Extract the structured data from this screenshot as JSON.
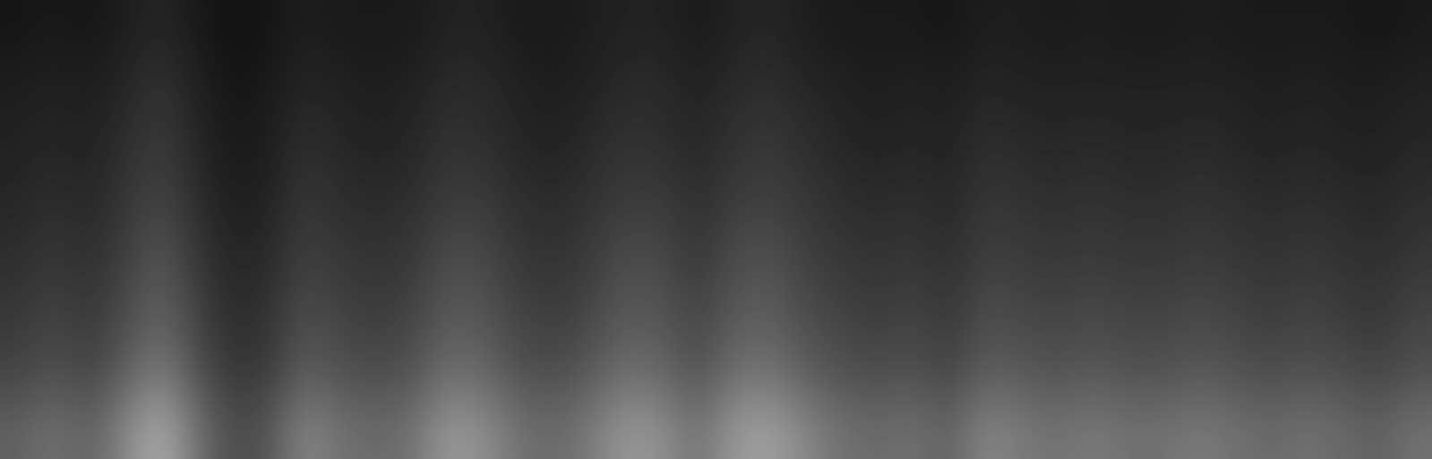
{
  "chart_data": {
    "type": "heatmap",
    "tick_labels": false,
    "color": "gray",
    "color_range": [
      0,
      0.6
    ],
    "cells": [
      [
        0.05,
        0.06,
        0.05,
        0.07,
        0.09,
        0.06,
        0.04,
        0.05,
        0.07,
        0.06,
        0.06,
        0.06,
        0.08,
        0.08,
        0.06,
        0.06,
        0.07,
        0.08,
        0.08,
        0.06,
        0.08,
        0.09,
        0.07,
        0.06,
        0.06,
        0.06,
        0.05,
        0.07,
        0.07,
        0.06,
        0.07,
        0.06,
        0.06,
        0.07,
        0.06,
        0.06,
        0.06,
        0.06,
        0.05,
        0.06
      ],
      [
        0.07,
        0.08,
        0.07,
        0.09,
        0.12,
        0.08,
        0.05,
        0.06,
        0.09,
        0.08,
        0.07,
        0.08,
        0.1,
        0.1,
        0.08,
        0.07,
        0.08,
        0.1,
        0.1,
        0.08,
        0.1,
        0.11,
        0.09,
        0.08,
        0.07,
        0.08,
        0.07,
        0.09,
        0.08,
        0.08,
        0.08,
        0.08,
        0.08,
        0.08,
        0.08,
        0.07,
        0.08,
        0.07,
        0.07,
        0.08
      ],
      [
        0.08,
        0.09,
        0.08,
        0.11,
        0.14,
        0.09,
        0.06,
        0.07,
        0.11,
        0.09,
        0.08,
        0.09,
        0.12,
        0.11,
        0.09,
        0.08,
        0.1,
        0.12,
        0.11,
        0.09,
        0.12,
        0.13,
        0.11,
        0.09,
        0.08,
        0.09,
        0.08,
        0.11,
        0.1,
        0.09,
        0.1,
        0.09,
        0.09,
        0.1,
        0.09,
        0.08,
        0.09,
        0.08,
        0.08,
        0.09
      ],
      [
        0.09,
        0.11,
        0.09,
        0.13,
        0.16,
        0.11,
        0.07,
        0.08,
        0.13,
        0.11,
        0.1,
        0.11,
        0.14,
        0.14,
        0.11,
        0.1,
        0.12,
        0.14,
        0.14,
        0.11,
        0.14,
        0.15,
        0.13,
        0.11,
        0.1,
        0.11,
        0.09,
        0.13,
        0.12,
        0.11,
        0.12,
        0.11,
        0.11,
        0.12,
        0.11,
        0.1,
        0.11,
        0.1,
        0.09,
        0.11
      ],
      [
        0.11,
        0.13,
        0.11,
        0.15,
        0.2,
        0.13,
        0.09,
        0.1,
        0.15,
        0.13,
        0.12,
        0.13,
        0.18,
        0.17,
        0.13,
        0.12,
        0.14,
        0.18,
        0.17,
        0.13,
        0.18,
        0.19,
        0.15,
        0.13,
        0.12,
        0.13,
        0.11,
        0.15,
        0.14,
        0.13,
        0.14,
        0.13,
        0.13,
        0.14,
        0.13,
        0.12,
        0.13,
        0.12,
        0.11,
        0.13
      ],
      [
        0.13,
        0.16,
        0.13,
        0.18,
        0.23,
        0.16,
        0.1,
        0.12,
        0.18,
        0.16,
        0.14,
        0.16,
        0.21,
        0.2,
        0.16,
        0.14,
        0.17,
        0.21,
        0.2,
        0.16,
        0.21,
        0.22,
        0.18,
        0.16,
        0.14,
        0.16,
        0.13,
        0.18,
        0.17,
        0.16,
        0.17,
        0.16,
        0.16,
        0.17,
        0.16,
        0.14,
        0.16,
        0.14,
        0.13,
        0.16
      ],
      [
        0.16,
        0.19,
        0.16,
        0.22,
        0.29,
        0.19,
        0.13,
        0.14,
        0.22,
        0.19,
        0.18,
        0.19,
        0.26,
        0.24,
        0.19,
        0.18,
        0.21,
        0.26,
        0.24,
        0.19,
        0.26,
        0.27,
        0.22,
        0.19,
        0.18,
        0.19,
        0.16,
        0.22,
        0.21,
        0.19,
        0.21,
        0.19,
        0.19,
        0.21,
        0.19,
        0.18,
        0.19,
        0.18,
        0.16,
        0.19
      ],
      [
        0.23,
        0.27,
        0.23,
        0.32,
        0.41,
        0.27,
        0.18,
        0.2,
        0.32,
        0.27,
        0.25,
        0.27,
        0.36,
        0.34,
        0.27,
        0.25,
        0.29,
        0.36,
        0.34,
        0.27,
        0.36,
        0.38,
        0.32,
        0.27,
        0.25,
        0.27,
        0.23,
        0.32,
        0.29,
        0.27,
        0.29,
        0.27,
        0.27,
        0.29,
        0.27,
        0.25,
        0.27,
        0.25,
        0.23,
        0.27
      ]
    ]
  }
}
